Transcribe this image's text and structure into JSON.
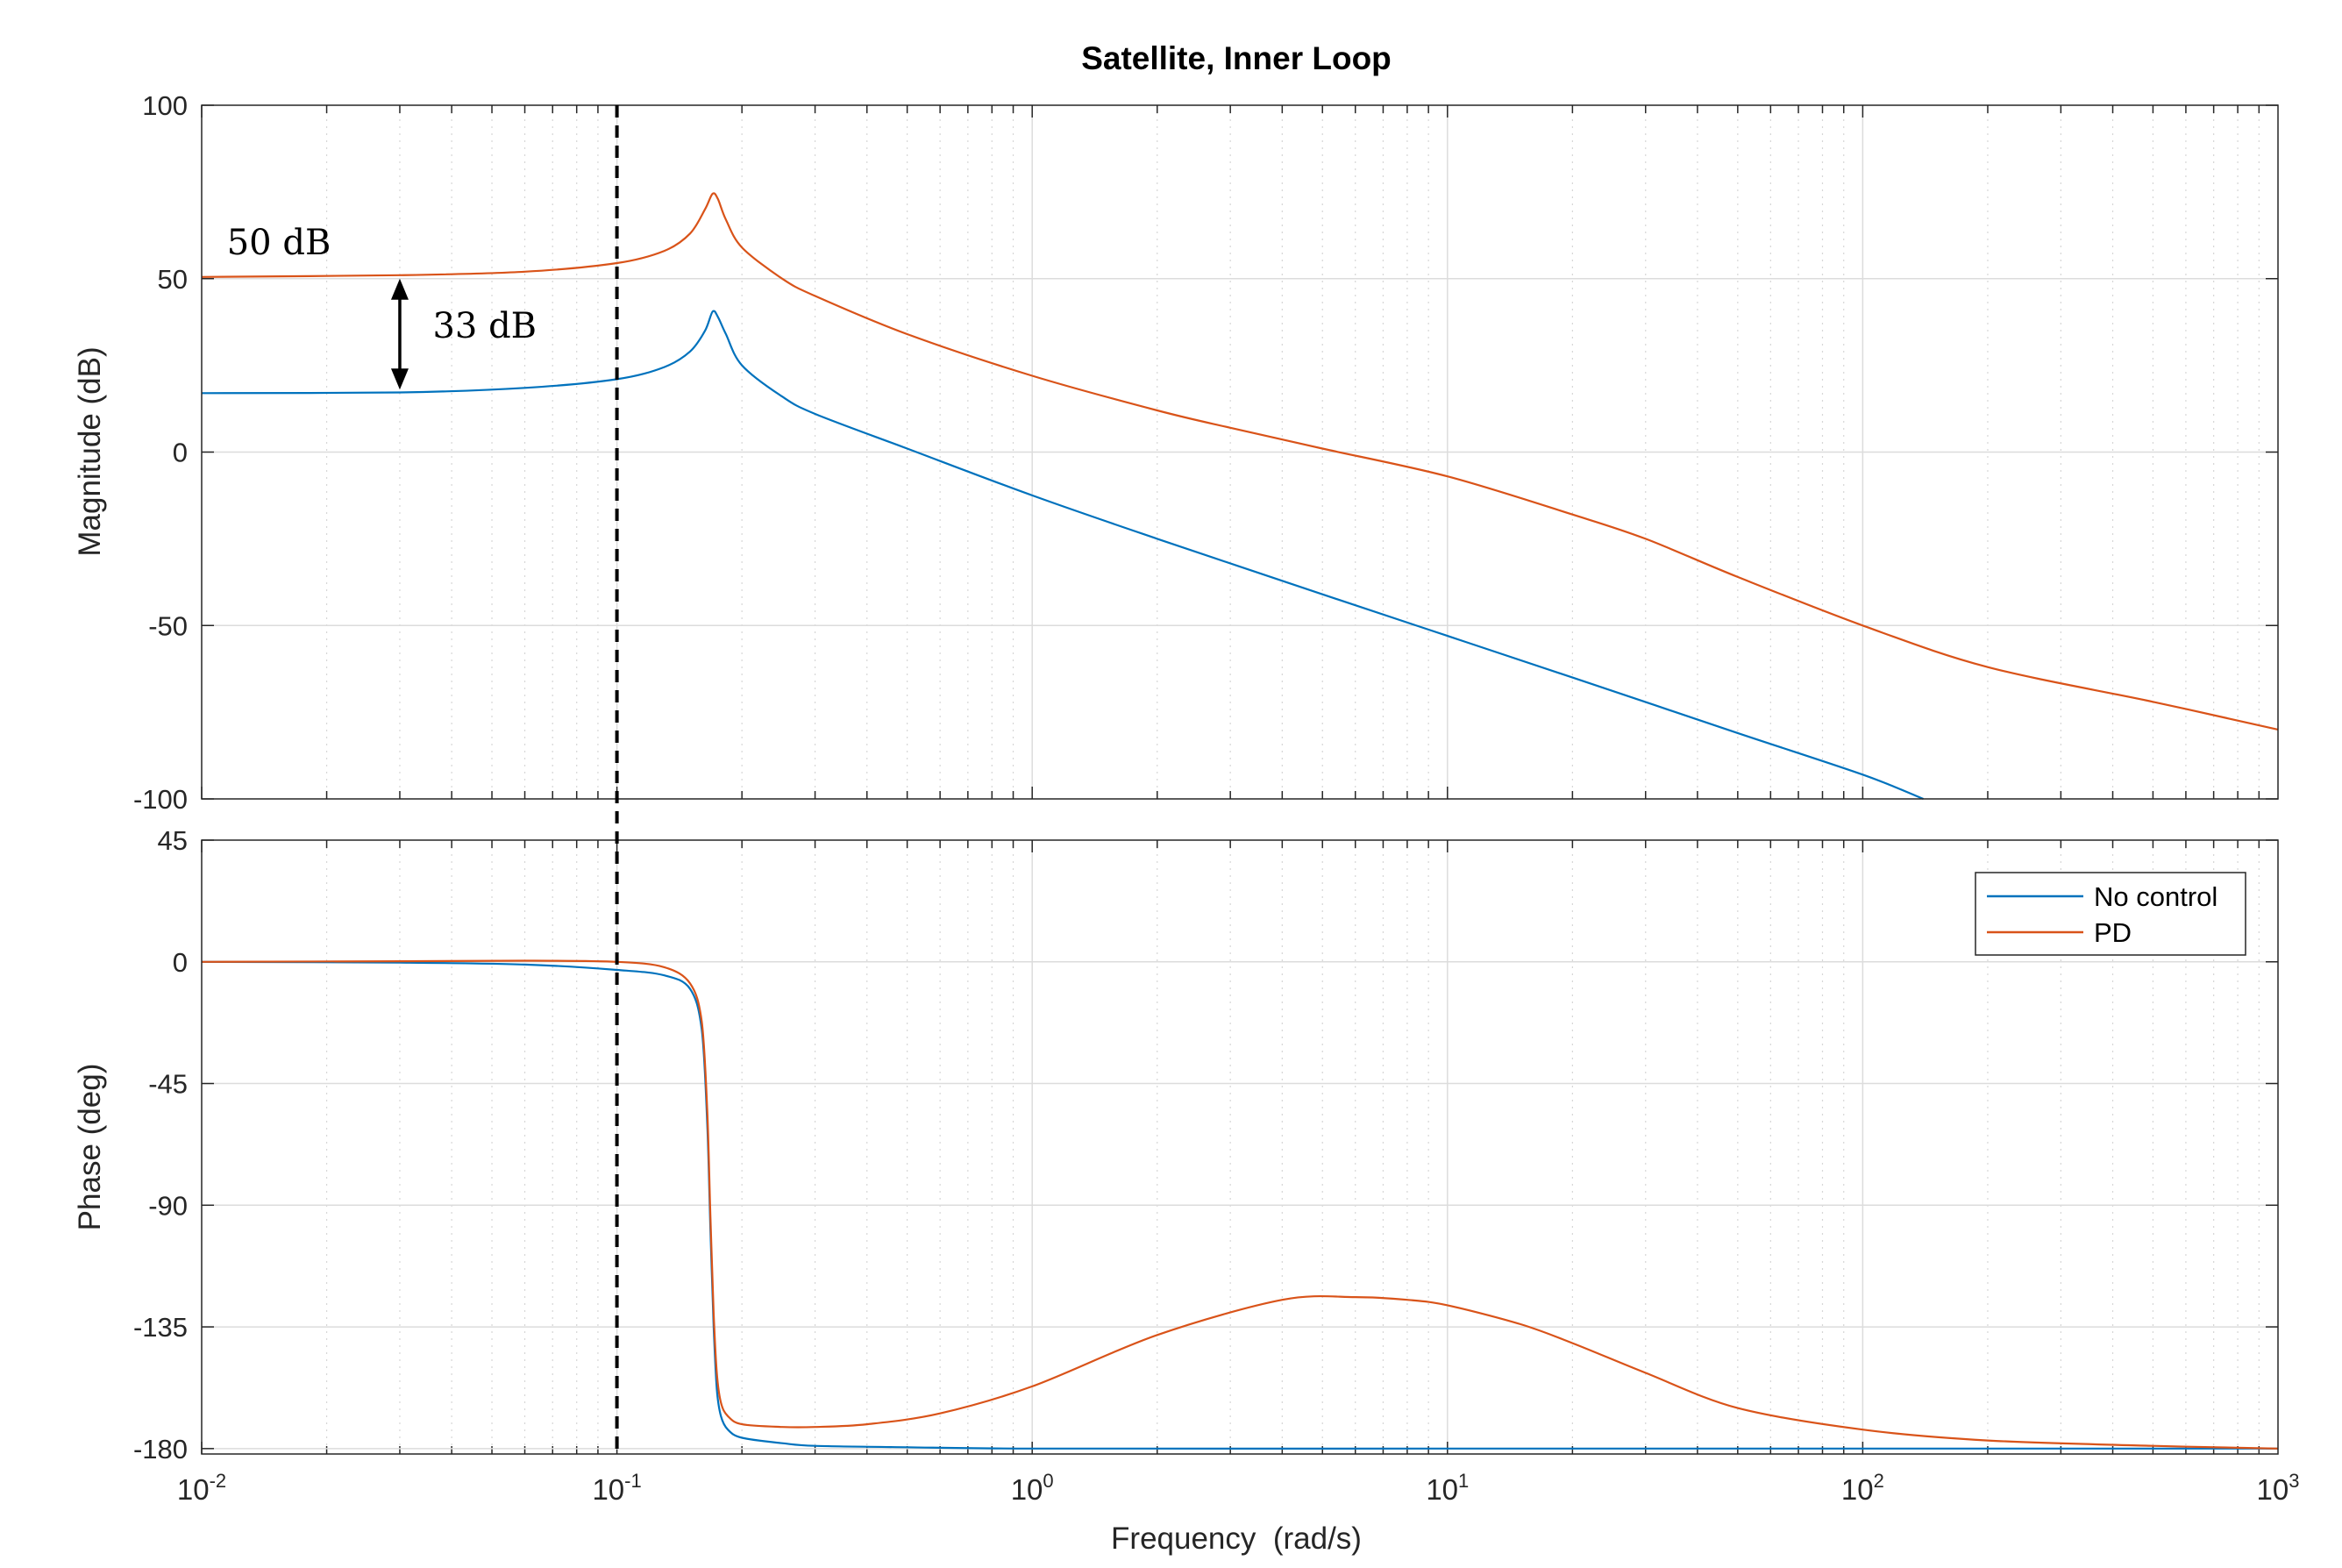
{
  "chart_data": {
    "type": "line",
    "title": "Satellite, Inner Loop",
    "xlabel": "Frequency  (rad/s)",
    "xscale": "log",
    "xlim": [
      0.01,
      1000
    ],
    "x_ticks": [
      {
        "base": "10",
        "exp": "-2",
        "value": 0.01
      },
      {
        "base": "10",
        "exp": "-1",
        "value": 0.1
      },
      {
        "base": "10",
        "exp": "0",
        "value": 1
      },
      {
        "base": "10",
        "exp": "1",
        "value": 10
      },
      {
        "base": "10",
        "exp": "2",
        "value": 100
      },
      {
        "base": "10",
        "exp": "3",
        "value": 1000
      }
    ],
    "grid": true,
    "vertical_marker_x": 0.1,
    "series_colors": {
      "No control": "#0072BD",
      "PD": "#D95319"
    },
    "legend": {
      "placement": "top-right",
      "subplot": "phase",
      "entries": [
        "No control",
        "PD"
      ]
    },
    "subplots": [
      {
        "name": "magnitude",
        "ylabel": "Magnitude (dB)",
        "ylim": [
          -100,
          100
        ],
        "yticks": [
          "100",
          "50",
          "0",
          "-50",
          "-100"
        ],
        "ytick_values": [
          100,
          50,
          0,
          -50,
          -100
        ],
        "series": [
          {
            "name": "No control",
            "x": [
              0.01,
              0.03,
              0.06,
              0.1,
              0.13,
              0.15,
              0.163,
              0.17,
              0.175,
              0.183,
              0.2,
              0.25,
              0.3,
              0.5,
              1,
              2,
              5,
              10,
              20,
              50,
              100,
              140
            ],
            "y": [
              17,
              17.2,
              18.5,
              21,
              24.5,
              29,
              35,
              40.5,
              39,
              34,
              25,
              16,
              11,
              1,
              -12.5,
              -25,
              -41,
              -53,
              -65,
              -81,
              -93,
              -100
            ]
          },
          {
            "name": "PD",
            "x": [
              0.01,
              0.03,
              0.06,
              0.1,
              0.13,
              0.15,
              0.163,
              0.17,
              0.175,
              0.183,
              0.2,
              0.25,
              0.3,
              0.5,
              1,
              2,
              3,
              5,
              10,
              20,
              30,
              50,
              100,
              200,
              500,
              1000
            ],
            "y": [
              50.5,
              51,
              52,
              54.5,
              58,
              63,
              70,
              74.5,
              73,
              67,
              59,
              50,
              45,
              34,
              22,
              12,
              7,
              1,
              -7,
              -18,
              -25,
              -36,
              -50,
              -62,
              -72,
              -80
            ]
          }
        ],
        "annotations": [
          {
            "text": "50 dB",
            "x": 0.0115,
            "y": 57
          },
          {
            "text": "33 dB",
            "x": 0.036,
            "y": 33
          },
          {
            "type": "double-arrow",
            "x": 0.03,
            "y_from": 50,
            "y_to": 18
          }
        ]
      },
      {
        "name": "phase",
        "ylabel": "Phase (deg)",
        "ylim": [
          -182,
          45
        ],
        "yticks": [
          "45",
          "0",
          "-45",
          "-90",
          "-135",
          "-180"
        ],
        "ytick_values": [
          45,
          0,
          -45,
          -90,
          -135,
          -180
        ],
        "series": [
          {
            "name": "No control",
            "x": [
              0.01,
              0.03,
              0.06,
              0.1,
              0.13,
              0.15,
              0.16,
              0.165,
              0.168,
              0.171,
              0.174,
              0.178,
              0.185,
              0.2,
              0.25,
              0.3,
              0.5,
              1,
              10,
              100,
              1000
            ],
            "y": [
              0,
              -0.3,
              -1,
              -3,
              -5,
              -10,
              -25,
              -60,
              -100,
              -135,
              -158,
              -168,
              -173,
              -176,
              -178,
              -179,
              -179.5,
              -180,
              -180,
              -180,
              -180
            ]
          },
          {
            "name": "PD",
            "x": [
              0.01,
              0.03,
              0.06,
              0.1,
              0.13,
              0.15,
              0.16,
              0.165,
              0.168,
              0.171,
              0.174,
              0.178,
              0.185,
              0.2,
              0.25,
              0.3,
              0.4,
              0.6,
              1,
              2,
              4,
              6,
              8,
              10,
              15,
              20,
              30,
              50,
              100,
              200,
              500,
              1000
            ],
            "y": [
              0,
              0.2,
              0.4,
              0,
              -2,
              -8,
              -22,
              -55,
              -95,
              -130,
              -152,
              -163,
              -168,
              -171,
              -172,
              -172,
              -171,
              -167,
              -157,
              -138,
              -125,
              -124,
              -125,
              -127,
              -134,
              -141,
              -152,
              -165,
              -173,
              -177,
              -179,
              -180
            ]
          }
        ]
      }
    ]
  }
}
